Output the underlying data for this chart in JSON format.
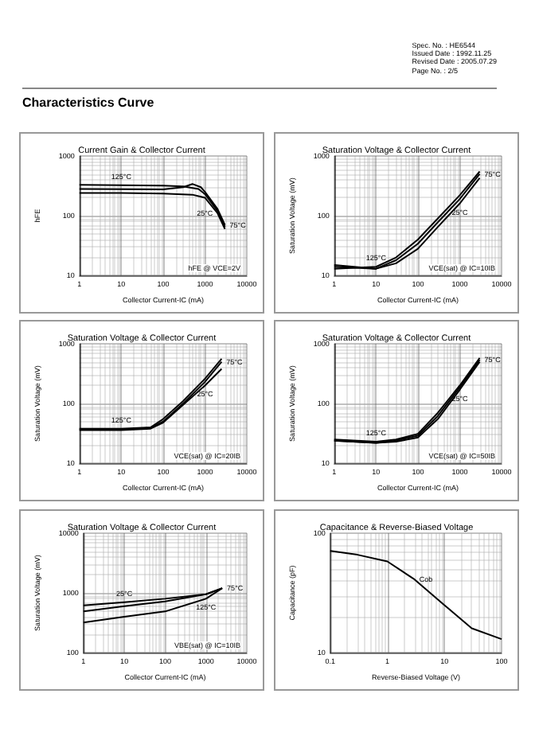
{
  "chart_data": [
    {
      "type": "other",
      "title": "Characteristics Curve",
      "annotations": [
        "Spec. No. : HE6544",
        "Issued Date : 1992.11.25",
        "Revised Date : 2005.07.29",
        "Page No. : 2/5"
      ]
    },
    {
      "type": "line",
      "title": "Current Gain & Collector Current",
      "xlabel": "Collector Current-IC (mA)",
      "ylabel": "hFE",
      "log": "xy",
      "xlim": [
        1,
        10000
      ],
      "xticks": [
        1,
        10,
        100,
        1000,
        10000
      ],
      "ylim": [
        10,
        1000
      ],
      "yticks": [
        10,
        100,
        1000
      ],
      "grid": true,
      "marker": "none",
      "series": [
        {
          "name": "125°C",
          "color": "#000000",
          "x": [
            1,
            10,
            100,
            300,
            700,
            1000,
            2000,
            3000
          ],
          "values": [
            330,
            325,
            320,
            310,
            280,
            230,
            120,
            65
          ]
        },
        {
          "name": "75°C",
          "color": "#000000",
          "x": [
            1,
            10,
            100,
            300,
            500,
            800,
            1000,
            2000,
            3000
          ],
          "values": [
            280,
            278,
            275,
            300,
            340,
            300,
            250,
            130,
            70
          ]
        },
        {
          "name": "25°C",
          "color": "#000000",
          "x": [
            1,
            10,
            100,
            500,
            1000,
            2000,
            3000
          ],
          "values": [
            240,
            240,
            235,
            225,
            200,
            110,
            60
          ]
        }
      ],
      "annotations": [
        "hFE @ VCE=2V"
      ]
    },
    {
      "type": "line",
      "title": "Saturation Voltage & Collector Current",
      "xlabel": "Collector Current-IC (mA)",
      "ylabel": "Saturation Voltage (mV)",
      "log": "xy",
      "xlim": [
        1,
        10000
      ],
      "xticks": [
        1,
        10,
        100,
        1000,
        10000
      ],
      "ylim": [
        10,
        1000
      ],
      "yticks": [
        10,
        100,
        1000
      ],
      "grid": true,
      "marker": "none",
      "series": [
        {
          "name": "125°C",
          "color": "#000000",
          "x": [
            1,
            10,
            30,
            100,
            300,
            1000,
            3000
          ],
          "values": [
            13,
            14,
            20,
            40,
            90,
            220,
            550
          ]
        },
        {
          "name": "75°C",
          "color": "#000000",
          "x": [
            1,
            10,
            30,
            100,
            300,
            1000,
            3000
          ],
          "values": [
            14,
            13,
            18,
            34,
            78,
            190,
            500
          ]
        },
        {
          "name": "25°C",
          "color": "#000000",
          "x": [
            1,
            10,
            30,
            100,
            300,
            1000,
            3000
          ],
          "values": [
            15,
            13,
            16,
            28,
            65,
            160,
            430
          ]
        }
      ],
      "annotations": [
        "VCE(sat) @ IC=10IB"
      ]
    },
    {
      "type": "line",
      "title": "Saturation Voltage & Collector Current",
      "xlabel": "Collector Current-IC (mA)",
      "ylabel": "Saturation Voltage (mV)",
      "log": "xy",
      "xlim": [
        1,
        10000
      ],
      "xticks": [
        1,
        10,
        100,
        1000,
        10000
      ],
      "ylim": [
        10,
        1000
      ],
      "yticks": [
        10,
        100,
        1000
      ],
      "grid": true,
      "marker": "none",
      "series": [
        {
          "name": "125°C",
          "color": "#000000",
          "x": [
            1,
            10,
            50,
            100,
            300,
            1000,
            2500
          ],
          "values": [
            38,
            38,
            40,
            55,
            110,
            260,
            560
          ]
        },
        {
          "name": "75°C",
          "color": "#000000",
          "x": [
            1,
            10,
            50,
            100,
            300,
            1000,
            2500
          ],
          "values": [
            37,
            37,
            39,
            50,
            100,
            230,
            500
          ]
        },
        {
          "name": "25°C",
          "color": "#000000",
          "x": [
            1,
            10,
            50,
            100,
            300,
            1000,
            2500
          ],
          "values": [
            36,
            36,
            38,
            48,
            95,
            200,
            380
          ]
        }
      ],
      "annotations": [
        "VCE(sat) @ IC=20IB"
      ]
    },
    {
      "type": "line",
      "title": "Saturation Voltage & Collector Current",
      "xlabel": "Collector Current-IC (mA)",
      "ylabel": "Saturation Voltage (mV)",
      "log": "xy",
      "xlim": [
        1,
        10000
      ],
      "xticks": [
        1,
        10,
        100,
        1000,
        10000
      ],
      "ylim": [
        10,
        1000
      ],
      "yticks": [
        10,
        100,
        1000
      ],
      "grid": true,
      "marker": "none",
      "series": [
        {
          "name": "125°C",
          "color": "#000000",
          "x": [
            1,
            10,
            30,
            100,
            300,
            1000,
            3000
          ],
          "values": [
            25,
            23,
            25,
            31,
            70,
            200,
            580
          ]
        },
        {
          "name": "75°C",
          "color": "#000000",
          "x": [
            1,
            10,
            30,
            100,
            300,
            1000,
            3000
          ],
          "values": [
            24,
            22,
            24,
            29,
            62,
            186,
            540
          ]
        },
        {
          "name": "25°C",
          "color": "#000000",
          "x": [
            1,
            10,
            30,
            100,
            300,
            1000,
            3000
          ],
          "values": [
            24,
            22,
            23,
            27,
            55,
            170,
            500
          ]
        }
      ],
      "annotations": [
        "VCE(sat) @ IC=50IB"
      ]
    },
    {
      "type": "line",
      "title": "Saturation Voltage & Collector Current",
      "xlabel": "Collector Current-IC (mA)",
      "ylabel": "Saturation Voltage (mV)",
      "log": "xy",
      "xlim": [
        1,
        10000
      ],
      "xticks": [
        1,
        10,
        100,
        1000,
        10000
      ],
      "ylim": [
        100,
        10000
      ],
      "yticks": [
        100,
        1000,
        10000
      ],
      "grid": true,
      "marker": "none",
      "series": [
        {
          "name": "25°C",
          "color": "#000000",
          "x": [
            1,
            10,
            100,
            1000,
            2500
          ],
          "values": [
            620,
            700,
            800,
            950,
            1200
          ]
        },
        {
          "name": "75°C",
          "color": "#000000",
          "x": [
            1,
            10,
            100,
            1000,
            2500
          ],
          "values": [
            490,
            600,
            720,
            950,
            1200
          ]
        },
        {
          "name": "125°C",
          "color": "#000000",
          "x": [
            1,
            10,
            100,
            1000,
            2500
          ],
          "values": [
            320,
            400,
            490,
            800,
            1200
          ]
        }
      ],
      "annotations": [
        "VBE(sat) @ IC=10IB"
      ]
    },
    {
      "type": "line",
      "title": "Capacitance & Reverse-Biased Voltage",
      "xlabel": "Reverse-Biased Voltage (V)",
      "ylabel": "Capacitance (pF)",
      "log": "xy",
      "xlim": [
        0.1,
        100
      ],
      "xticks": [
        0.1,
        1,
        10,
        100
      ],
      "ylim": [
        10,
        100
      ],
      "yticks": [
        10,
        100
      ],
      "grid": true,
      "marker": "none",
      "series": [
        {
          "name": "Cob",
          "color": "#000000",
          "x": [
            0.1,
            0.3,
            1,
            3,
            10,
            30,
            100
          ],
          "values": [
            71,
            66,
            58,
            41,
            25,
            16,
            13
          ]
        }
      ]
    }
  ]
}
